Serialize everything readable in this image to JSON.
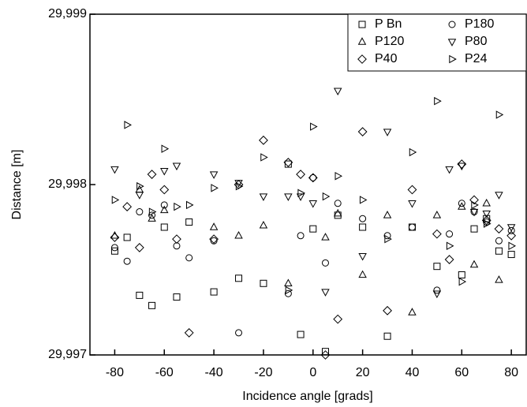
{
  "chart_data": {
    "type": "scatter",
    "x_label": "Incidence angle [grads]",
    "y_label": "Distance [m]",
    "xlim": [
      -90,
      86
    ],
    "ylim": [
      29.997,
      29.999
    ],
    "xticks": [
      -80,
      -60,
      -40,
      -20,
      0,
      20,
      40,
      60,
      80
    ],
    "yticks": [
      {
        "value": 29.997,
        "label": "29,997"
      },
      {
        "value": 29.998,
        "label": "29,998"
      },
      {
        "value": 29.999,
        "label": "29,999"
      }
    ],
    "legend": "top-right",
    "series": [
      {
        "name": "P Bn",
        "marker": "square",
        "color": "#000000",
        "x": [
          -80,
          -75,
          -70,
          -65,
          -60,
          -55,
          -50,
          -40,
          -30,
          -20,
          -10,
          -5,
          0,
          5,
          10,
          20,
          30,
          40,
          50,
          60,
          65,
          70,
          75,
          80
        ],
        "values": [
          29.99761,
          29.99769,
          29.99735,
          29.99729,
          29.99775,
          29.99734,
          29.99778,
          29.99737,
          29.99745,
          29.99742,
          29.99812,
          29.99712,
          29.99774,
          29.99702,
          29.99782,
          29.99775,
          29.99711,
          29.99775,
          29.99752,
          29.99747,
          29.99774,
          29.9978,
          29.99761,
          29.99759
        ]
      },
      {
        "name": "P180",
        "marker": "circle",
        "color": "#000000",
        "x": [
          -80,
          -75,
          -70,
          -65,
          -60,
          -55,
          -50,
          -40,
          -30,
          -10,
          -5,
          0,
          5,
          10,
          20,
          30,
          40,
          50,
          55,
          60,
          65,
          70,
          75,
          80
        ],
        "values": [
          29.99763,
          29.99755,
          29.99784,
          29.99782,
          29.99788,
          29.99764,
          29.99757,
          29.99767,
          29.99713,
          29.99736,
          29.9977,
          29.99804,
          29.99754,
          29.99789,
          29.9978,
          29.9977,
          29.99775,
          29.99738,
          29.99771,
          29.99789,
          29.99784,
          29.99778,
          29.99767,
          29.99773
        ]
      },
      {
        "name": "P120",
        "marker": "triangle-up",
        "color": "#000000",
        "x": [
          -80,
          -70,
          -65,
          -60,
          -40,
          -30,
          -20,
          -10,
          5,
          10,
          20,
          30,
          40,
          50,
          60,
          65,
          70,
          75
        ],
        "values": [
          29.9977,
          29.99797,
          29.9978,
          29.99785,
          29.99775,
          29.9977,
          29.99776,
          29.99742,
          29.99769,
          29.99783,
          29.99747,
          29.99782,
          29.99725,
          29.99782,
          29.99787,
          29.99753,
          29.99789,
          29.99744
        ]
      },
      {
        "name": "P80",
        "marker": "triangle-down",
        "color": "#000000",
        "x": [
          -80,
          -70,
          -60,
          -55,
          -40,
          -30,
          -20,
          -10,
          -5,
          0,
          5,
          10,
          20,
          30,
          40,
          50,
          55,
          60,
          65,
          70,
          75,
          80
        ],
        "values": [
          29.99809,
          29.99794,
          29.99808,
          29.99811,
          29.99806,
          29.99801,
          29.99793,
          29.99793,
          29.99793,
          29.99789,
          29.99737,
          29.99855,
          29.99758,
          29.99831,
          29.99789,
          29.99736,
          29.99809,
          29.99811,
          29.99784,
          29.99783,
          29.99794,
          29.99775
        ]
      },
      {
        "name": "P40",
        "marker": "diamond",
        "color": "#000000",
        "x": [
          -80,
          -75,
          -70,
          -65,
          -60,
          -55,
          -50,
          -40,
          -30,
          -20,
          -10,
          -5,
          0,
          5,
          10,
          20,
          30,
          40,
          50,
          55,
          60,
          65,
          70,
          75,
          80
        ],
        "values": [
          29.99769,
          29.99787,
          29.99763,
          29.99806,
          29.99797,
          29.99768,
          29.99713,
          29.99768,
          29.998,
          29.99826,
          29.99813,
          29.99806,
          29.99804,
          29.997,
          29.99721,
          29.99831,
          29.99726,
          29.99797,
          29.99771,
          29.99756,
          29.99812,
          29.99791,
          29.99779,
          29.99774,
          29.9977
        ]
      },
      {
        "name": "P24",
        "marker": "triangle-right",
        "color": "#000000",
        "x": [
          -80,
          -75,
          -70,
          -65,
          -60,
          -55,
          -50,
          -40,
          -30,
          -20,
          -10,
          -5,
          0,
          5,
          10,
          20,
          30,
          40,
          50,
          55,
          60,
          65,
          70,
          75,
          80
        ],
        "values": [
          29.99791,
          29.99835,
          29.99799,
          29.99784,
          29.99821,
          29.99787,
          29.99788,
          29.99798,
          29.99799,
          29.99816,
          29.99738,
          29.99795,
          29.99834,
          29.99793,
          29.99805,
          29.99791,
          29.99768,
          29.99819,
          29.99849,
          29.99764,
          29.99743,
          29.99788,
          29.99777,
          29.99841,
          29.99764
        ]
      }
    ]
  }
}
